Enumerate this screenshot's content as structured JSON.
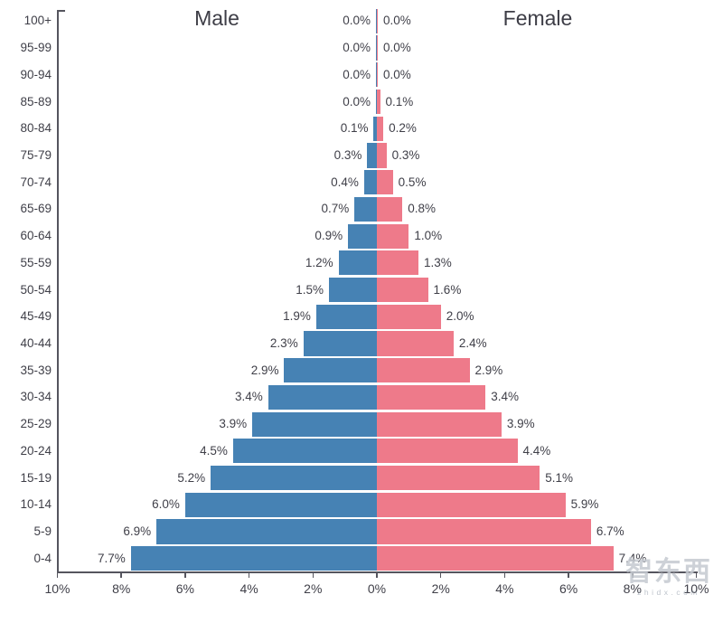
{
  "chart_data": {
    "type": "bar",
    "variant": "population_pyramid",
    "title_left": "Male",
    "title_right": "Female",
    "categories_top_to_bottom": [
      "100+",
      "95-99",
      "90-94",
      "85-89",
      "80-84",
      "75-79",
      "70-74",
      "65-69",
      "60-64",
      "55-59",
      "50-54",
      "45-49",
      "40-44",
      "35-39",
      "30-34",
      "25-29",
      "20-24",
      "15-19",
      "10-14",
      "5-9",
      "0-4"
    ],
    "series": [
      {
        "name": "Male",
        "side": "left",
        "color": "#4682B4",
        "values_pct": [
          0.0,
          0.0,
          0.0,
          0.0,
          0.1,
          0.3,
          0.4,
          0.7,
          0.9,
          1.2,
          1.5,
          1.9,
          2.3,
          2.9,
          3.4,
          3.9,
          4.5,
          5.2,
          6.0,
          6.9,
          7.7
        ],
        "labels": [
          "0.0%",
          "0.0%",
          "0.0%",
          "0.0%",
          "0.1%",
          "0.3%",
          "0.4%",
          "0.7%",
          "0.9%",
          "1.2%",
          "1.5%",
          "1.9%",
          "2.3%",
          "2.9%",
          "3.4%",
          "3.9%",
          "4.5%",
          "5.2%",
          "6.0%",
          "6.9%",
          "7.7%"
        ]
      },
      {
        "name": "Female",
        "side": "right",
        "color": "#EE7A8A",
        "values_pct": [
          0.0,
          0.0,
          0.0,
          0.1,
          0.2,
          0.3,
          0.5,
          0.8,
          1.0,
          1.3,
          1.6,
          2.0,
          2.4,
          2.9,
          3.4,
          3.9,
          4.4,
          5.1,
          5.9,
          6.7,
          7.4
        ],
        "labels": [
          "0.0%",
          "0.0%",
          "0.0%",
          "0.1%",
          "0.2%",
          "0.3%",
          "0.5%",
          "0.8%",
          "1.0%",
          "1.3%",
          "1.6%",
          "2.0%",
          "2.4%",
          "2.9%",
          "3.4%",
          "3.9%",
          "4.4%",
          "5.1%",
          "5.9%",
          "6.7%",
          "7.4%"
        ]
      }
    ],
    "x_axis": {
      "range_abs_pct": 10,
      "ticks": [
        {
          "pct": -10,
          "label": "10%"
        },
        {
          "pct": -8,
          "label": "8%"
        },
        {
          "pct": -6,
          "label": "6%"
        },
        {
          "pct": -4,
          "label": "4%"
        },
        {
          "pct": -2,
          "label": "2%"
        },
        {
          "pct": 0,
          "label": "0%"
        },
        {
          "pct": 2,
          "label": "2%"
        },
        {
          "pct": 4,
          "label": "4%"
        },
        {
          "pct": 6,
          "label": "6%"
        },
        {
          "pct": 8,
          "label": "8%"
        },
        {
          "pct": 10,
          "label": "10%"
        }
      ]
    },
    "grid": false,
    "legend_position": "titles-above-halves",
    "colors": {
      "male_bar": "#4682B4",
      "female_bar": "#EE7A8A",
      "axis": "#55555e",
      "text": "#3f3f48"
    }
  },
  "watermark": {
    "logo": "智东西",
    "site": "zhidx.com"
  }
}
